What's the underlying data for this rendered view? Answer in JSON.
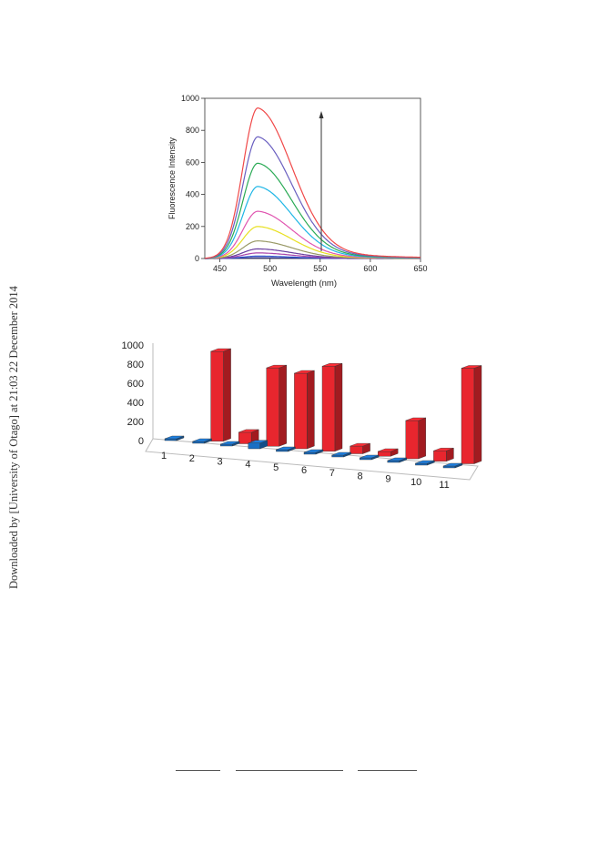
{
  "side_note": "Downloaded by [University of Otago] at 21:03 22 December 2014",
  "chart_data": [
    {
      "type": "line",
      "title": "",
      "xlabel": "Wavelength (nm)",
      "ylabel": "Fluorescence Intensity",
      "xlim": [
        435,
        650
      ],
      "ylim": [
        0,
        1000
      ],
      "x_ticks": [
        "450",
        "500",
        "550",
        "600",
        "650"
      ],
      "y_ticks": [
        "0",
        "200",
        "400",
        "600",
        "800",
        "1000"
      ],
      "peak_wavelength": 488,
      "annotation": "upward arrow indicating increasing intensity",
      "grid": false,
      "legend": "none",
      "series": [
        {
          "peak": 5,
          "color": "#2f2f8f"
        },
        {
          "peak": 15,
          "color": "#3355cc"
        },
        {
          "peak": 35,
          "color": "#aa44aa"
        },
        {
          "peak": 60,
          "color": "#6a3fa0"
        },
        {
          "peak": 110,
          "color": "#999966"
        },
        {
          "peak": 200,
          "color": "#e8e020"
        },
        {
          "peak": 295,
          "color": "#e055b0"
        },
        {
          "peak": 450,
          "color": "#1fb6e6"
        },
        {
          "peak": 595,
          "color": "#2aaa55"
        },
        {
          "peak": 760,
          "color": "#6a5fc0"
        },
        {
          "peak": 940,
          "color": "#f04848"
        }
      ]
    },
    {
      "type": "bar",
      "title": "",
      "categories": [
        "1",
        "2",
        "3",
        "4",
        "5",
        "6",
        "7",
        "8",
        "9",
        "10",
        "11"
      ],
      "ylim": [
        0,
        1000
      ],
      "y_ticks": [
        "0",
        "200",
        "400",
        "600",
        "800",
        "1000"
      ],
      "grid": false,
      "legend": "none",
      "series": [
        {
          "values": [
            0,
            940,
            120,
            820,
            790,
            890,
            80,
            50,
            400,
            110,
            1000
          ],
          "color": "#e8262e"
        },
        {
          "values": [
            5,
            5,
            5,
            60,
            5,
            5,
            5,
            5,
            5,
            5,
            5
          ],
          "color": "#1a6fc4"
        }
      ]
    }
  ]
}
